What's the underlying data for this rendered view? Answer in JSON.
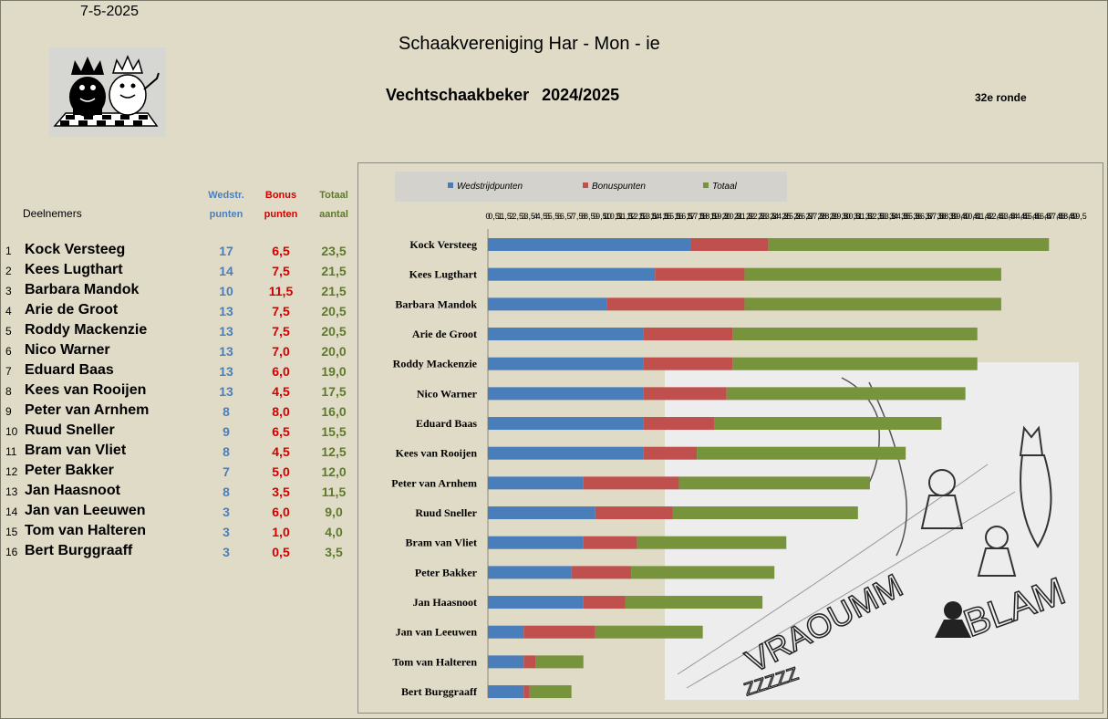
{
  "header": {
    "date": "7-5-2025",
    "club": "Schaakvereniging Har - Mon - ie",
    "cup": "Vechtschaakbeker",
    "season": "2024/2025",
    "round": "32e ronde"
  },
  "table": {
    "participants_label": "Deelnemers",
    "col_wedstr": [
      "Wedstr.",
      "punten"
    ],
    "col_bonus": [
      "Bonus",
      "punten"
    ],
    "col_totaal": [
      "Totaal",
      "aantal"
    ],
    "rows": [
      {
        "rank": "1",
        "name": "Kock Versteeg",
        "wedstr": "17",
        "bonus": "6,5",
        "totaal": "23,5"
      },
      {
        "rank": "2",
        "name": "Kees Lugthart",
        "wedstr": "14",
        "bonus": "7,5",
        "totaal": "21,5"
      },
      {
        "rank": "3",
        "name": "Barbara Mandok",
        "wedstr": "10",
        "bonus": "11,5",
        "totaal": "21,5"
      },
      {
        "rank": "4",
        "name": "Arie de Groot",
        "wedstr": "13",
        "bonus": "7,5",
        "totaal": "20,5"
      },
      {
        "rank": "5",
        "name": "Roddy Mackenzie",
        "wedstr": "13",
        "bonus": "7,5",
        "totaal": "20,5"
      },
      {
        "rank": "6",
        "name": "Nico Warner",
        "wedstr": "13",
        "bonus": "7,0",
        "totaal": "20,0"
      },
      {
        "rank": "7",
        "name": "Eduard Baas",
        "wedstr": "13",
        "bonus": "6,0",
        "totaal": "19,0"
      },
      {
        "rank": "8",
        "name": "Kees van Rooijen",
        "wedstr": "13",
        "bonus": "4,5",
        "totaal": "17,5"
      },
      {
        "rank": "9",
        "name": "Peter van Arnhem",
        "wedstr": "8",
        "bonus": "8,0",
        "totaal": "16,0"
      },
      {
        "rank": "10",
        "name": "Ruud Sneller",
        "wedstr": "9",
        "bonus": "6,5",
        "totaal": "15,5"
      },
      {
        "rank": "11",
        "name": "Bram van Vliet",
        "wedstr": "8",
        "bonus": "4,5",
        "totaal": "12,5"
      },
      {
        "rank": "12",
        "name": "Peter Bakker",
        "wedstr": "7",
        "bonus": "5,0",
        "totaal": "12,0"
      },
      {
        "rank": "13",
        "name": "Jan Haasnoot",
        "wedstr": "8",
        "bonus": "3,5",
        "totaal": "11,5"
      },
      {
        "rank": "14",
        "name": "Jan van Leeuwen",
        "wedstr": "3",
        "bonus": "6,0",
        "totaal": "9,0"
      },
      {
        "rank": "15",
        "name": "Tom van Halteren",
        "wedstr": "3",
        "bonus": "1,0",
        "totaal": "4,0"
      },
      {
        "rank": "16",
        "name": "Bert Burggraaff",
        "wedstr": "3",
        "bonus": "0,5",
        "totaal": "3,5"
      }
    ]
  },
  "illustration": {
    "sound_words": [
      "VRAOUMM",
      "BLAM",
      "ZZZZZ"
    ]
  },
  "chart_data": {
    "type": "bar",
    "orientation": "horizontal",
    "stacked": true,
    "categories": [
      "Kock Versteeg",
      "Kees Lugthart",
      "Barbara Mandok",
      "Arie de Groot",
      "Roddy Mackenzie",
      "Nico Warner",
      "Eduard Baas",
      "Kees van Rooijen",
      "Peter van Arnhem",
      "Ruud Sneller",
      "Bram van Vliet",
      "Peter Bakker",
      "Jan Haasnoot",
      "Jan van Leeuwen",
      "Tom van Halteren",
      "Bert Burggraaff"
    ],
    "series": [
      {
        "name": "Wedstrijdpunten",
        "color": "#4a7ebb",
        "values": [
          17,
          14,
          10,
          13,
          13,
          13,
          13,
          13,
          8,
          9,
          8,
          7,
          8,
          3,
          3,
          3
        ]
      },
      {
        "name": "Bonuspunten",
        "color": "#c0504d",
        "values": [
          6.5,
          7.5,
          11.5,
          7.5,
          7.5,
          7,
          6,
          4.5,
          8,
          6.5,
          4.5,
          5,
          3.5,
          6,
          1,
          0.5
        ]
      },
      {
        "name": "Totaal",
        "color": "#77933c",
        "values": [
          23.5,
          21.5,
          21.5,
          20.5,
          20.5,
          20,
          19,
          17.5,
          16,
          15.5,
          12.5,
          12,
          11.5,
          9,
          4,
          3.5
        ]
      }
    ],
    "xlim": [
      0,
      49.5
    ],
    "x_tick_step": 0.5,
    "legend_position": "top",
    "grid": false
  }
}
